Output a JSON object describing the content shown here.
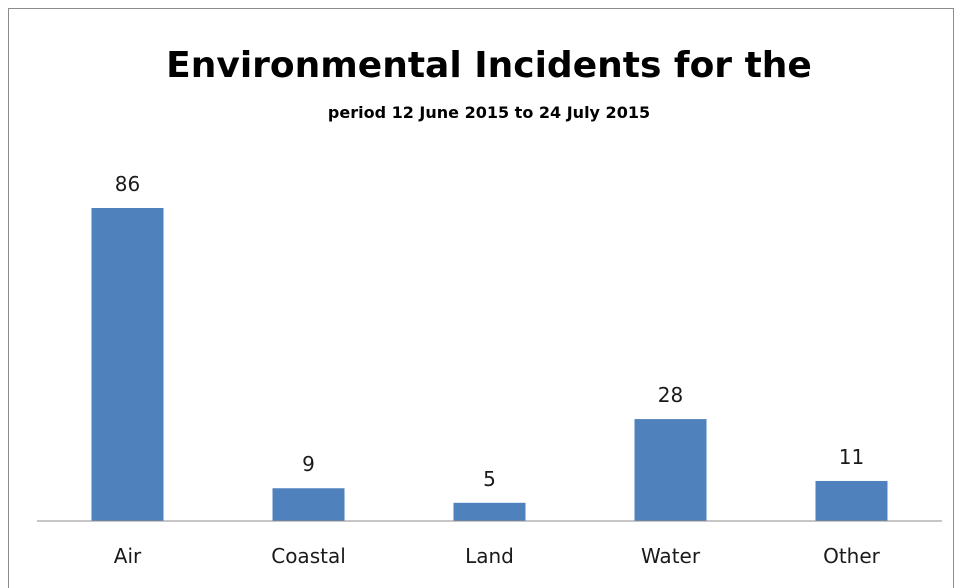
{
  "chart_data": {
    "type": "bar",
    "title": "Environmental Incidents for the",
    "subtitle": "period 12 June 2015 to 24 July 2015",
    "categories": [
      "Air",
      "Coastal",
      "Land",
      "Water",
      "Other"
    ],
    "values": [
      86,
      9,
      5,
      28,
      11
    ],
    "bar_color": "#4f81bd",
    "xlabel": "",
    "ylabel": "",
    "ylim": [
      0,
      86
    ],
    "grid": false,
    "data_labels": true,
    "legend": "none"
  }
}
